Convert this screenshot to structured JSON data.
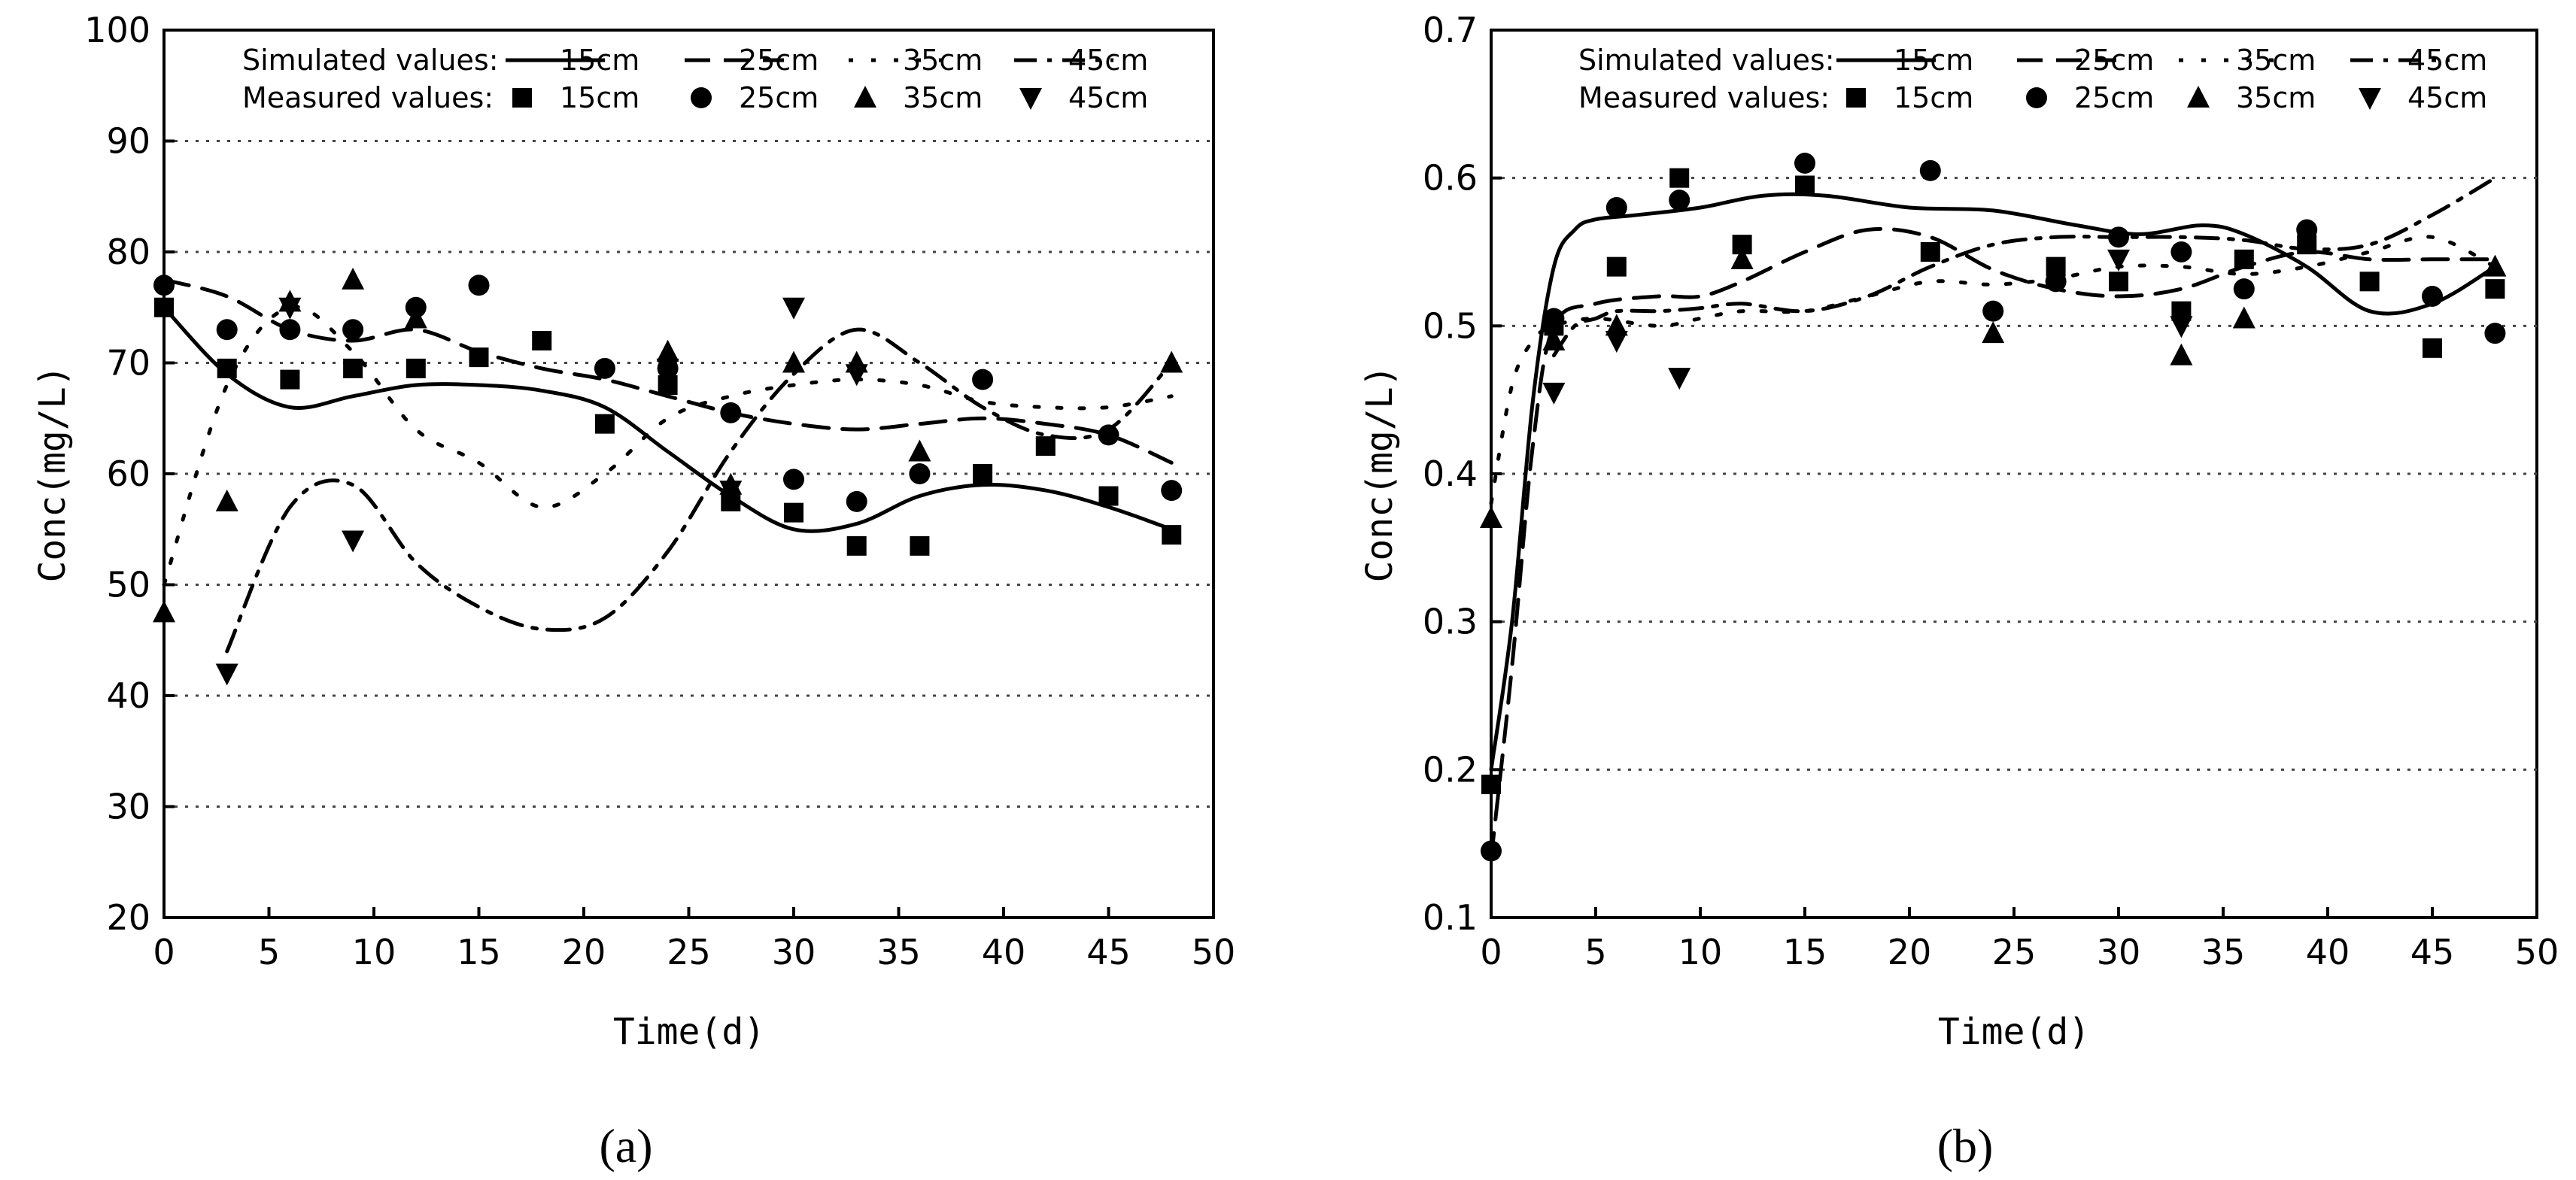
{
  "chart_data": [
    {
      "panel": "(a)",
      "type": "line+scatter",
      "xlabel": "Time(d)",
      "ylabel": "Conc(mg/L)",
      "xlim": [
        0,
        50
      ],
      "ylim": [
        20,
        100
      ],
      "xticks": [
        0,
        5,
        10,
        15,
        20,
        25,
        30,
        35,
        40,
        45,
        50
      ],
      "yticks": [
        20,
        30,
        40,
        50,
        60,
        70,
        80,
        90,
        100
      ],
      "yticks_text": [
        "20",
        "30",
        "40",
        "50",
        "60",
        "70",
        "80",
        "90",
        "100"
      ],
      "grid": "horizontal-dotted",
      "legend": {
        "simulated_label": "Simulated values:",
        "measured_label": "Measured values:",
        "depths": [
          "15cm",
          "25cm",
          "35cm",
          "45cm"
        ]
      },
      "simulated": [
        {
          "name": "15cm",
          "x": [
            0,
            3,
            6,
            9,
            12,
            15,
            18,
            21,
            24,
            27,
            30,
            33,
            36,
            39,
            42,
            45,
            48
          ],
          "y": [
            75,
            69,
            66,
            67,
            68,
            68,
            67.5,
            66,
            62,
            58,
            55,
            55.5,
            58,
            59,
            58.5,
            57,
            55
          ]
        },
        {
          "name": "25cm",
          "x": [
            0,
            3,
            6,
            9,
            12,
            15,
            18,
            21,
            24,
            27,
            30,
            33,
            36,
            39,
            42,
            45,
            48
          ],
          "y": [
            77.5,
            76,
            73,
            72,
            73,
            71,
            69.5,
            68.5,
            67,
            65.5,
            64.5,
            64,
            64.5,
            65,
            64.5,
            63.5,
            61
          ]
        },
        {
          "name": "35cm",
          "x": [
            0,
            3,
            6,
            9,
            12,
            15,
            18,
            21,
            24,
            27,
            30,
            33,
            36,
            39,
            42,
            45,
            48
          ],
          "y": [
            50,
            68,
            75,
            71,
            64,
            61,
            57,
            60,
            65,
            67,
            68,
            68.5,
            68,
            66.5,
            66,
            66,
            67
          ]
        },
        {
          "name": "45cm",
          "x": [
            3,
            6,
            9,
            12,
            15,
            18,
            21,
            24,
            27,
            30,
            33,
            36,
            39,
            42,
            45,
            48
          ],
          "y": [
            44,
            57,
            59,
            52,
            48,
            46,
            47,
            53,
            62,
            69,
            73,
            70,
            66,
            63.5,
            64,
            70
          ]
        }
      ],
      "measured": [
        {
          "name": "15cm",
          "marker": "square",
          "x": [
            0,
            3,
            6,
            9,
            12,
            15,
            18,
            21,
            24,
            27,
            30,
            33,
            36,
            39,
            42,
            45,
            48
          ],
          "y": [
            75,
            69.5,
            68.5,
            69.5,
            69.5,
            70.5,
            72,
            64.5,
            68,
            57.5,
            56.5,
            53.5,
            53.5,
            60,
            62.5,
            58,
            54.5
          ]
        },
        {
          "name": "25cm",
          "marker": "circle",
          "x": [
            0,
            3,
            6,
            9,
            12,
            15,
            21,
            24,
            27,
            30,
            33,
            36,
            39,
            45,
            48
          ],
          "y": [
            77,
            73,
            73,
            73,
            75,
            77,
            69.5,
            69.5,
            65.5,
            59.5,
            57.5,
            60,
            68.5,
            63.5,
            58.5
          ]
        },
        {
          "name": "35cm",
          "marker": "triangle-up",
          "x": [
            0,
            3,
            6,
            9,
            12,
            24,
            27,
            30,
            33,
            36,
            48
          ],
          "y": [
            47.5,
            57.5,
            75.5,
            77.5,
            74,
            71,
            59,
            70,
            70,
            62,
            70
          ]
        },
        {
          "name": "45cm",
          "marker": "triangle-down",
          "x": [
            3,
            6,
            9,
            24,
            27,
            30,
            33
          ],
          "y": [
            42,
            75,
            54,
            69.5,
            58.5,
            75,
            69
          ]
        }
      ]
    },
    {
      "panel": "(b)",
      "type": "line+scatter",
      "xlabel": "Time(d)",
      "ylabel": "Conc(mg/L)",
      "xlim": [
        0,
        50
      ],
      "ylim": [
        0.1,
        0.7
      ],
      "xticks": [
        0,
        5,
        10,
        15,
        20,
        25,
        30,
        35,
        40,
        45,
        50
      ],
      "yticks": [
        0.1,
        0.2,
        0.3,
        0.4,
        0.5,
        0.6,
        0.7
      ],
      "yticks_text": [
        "0.1",
        "0.2",
        "0.3",
        "0.4",
        "0.5",
        "0.6",
        "0.7"
      ],
      "grid": "horizontal-dotted",
      "legend": {
        "simulated_label": "Simulated values:",
        "measured_label": "Measured values:",
        "depths": [
          "15cm",
          "25cm",
          "35cm",
          "45cm"
        ]
      },
      "simulated": [
        {
          "name": "15cm",
          "x": [
            0,
            1,
            2,
            3,
            4,
            5,
            7,
            10,
            13,
            16,
            20,
            24,
            28,
            31,
            34,
            36,
            39,
            42,
            45,
            48
          ],
          "y": [
            0.2,
            0.3,
            0.45,
            0.54,
            0.565,
            0.572,
            0.575,
            0.58,
            0.588,
            0.588,
            0.58,
            0.578,
            0.568,
            0.562,
            0.568,
            0.562,
            0.54,
            0.51,
            0.515,
            0.54
          ]
        },
        {
          "name": "25cm",
          "x": [
            0,
            1,
            2,
            3,
            5,
            8,
            10,
            12,
            15,
            18,
            21,
            24,
            27,
            30,
            33,
            36,
            39,
            42,
            45,
            48
          ],
          "y": [
            0.14,
            0.27,
            0.42,
            0.5,
            0.515,
            0.52,
            0.52,
            0.53,
            0.55,
            0.565,
            0.56,
            0.538,
            0.525,
            0.52,
            0.525,
            0.54,
            0.55,
            0.545,
            0.545,
            0.545
          ]
        },
        {
          "name": "35cm",
          "x": [
            0,
            1,
            2,
            3,
            5,
            8,
            10,
            12,
            15,
            18,
            21,
            24,
            27,
            30,
            33,
            36,
            39,
            42,
            45,
            48
          ],
          "y": [
            0.38,
            0.46,
            0.49,
            0.5,
            0.505,
            0.5,
            0.505,
            0.51,
            0.51,
            0.52,
            0.53,
            0.528,
            0.532,
            0.54,
            0.54,
            0.535,
            0.54,
            0.55,
            0.56,
            0.54
          ]
        },
        {
          "name": "45cm",
          "x": [
            3,
            4,
            5,
            6,
            8,
            10,
            12,
            15,
            18,
            21,
            24,
            27,
            30,
            33,
            36,
            39,
            42,
            45,
            48
          ],
          "y": [
            0.48,
            0.5,
            0.505,
            0.51,
            0.51,
            0.512,
            0.515,
            0.51,
            0.52,
            0.54,
            0.555,
            0.56,
            0.56,
            0.56,
            0.558,
            0.552,
            0.555,
            0.575,
            0.6
          ]
        }
      ],
      "measured": [
        {
          "name": "15cm",
          "marker": "square",
          "x": [
            0,
            3,
            6,
            9,
            12,
            15,
            21,
            27,
            30,
            33,
            36,
            39,
            42,
            45,
            48
          ],
          "y": [
            0.19,
            0.5,
            0.54,
            0.6,
            0.555,
            0.595,
            0.55,
            0.54,
            0.53,
            0.51,
            0.545,
            0.555,
            0.53,
            0.485,
            0.525
          ]
        },
        {
          "name": "25cm",
          "marker": "circle",
          "x": [
            0,
            3,
            6,
            9,
            15,
            21,
            24,
            27,
            30,
            33,
            36,
            39,
            45,
            48
          ],
          "y": [
            0.145,
            0.505,
            0.58,
            0.585,
            0.61,
            0.605,
            0.51,
            0.53,
            0.56,
            0.55,
            0.525,
            0.565,
            0.52,
            0.495
          ]
        },
        {
          "name": "35cm",
          "marker": "triangle-up",
          "x": [
            0,
            3,
            6,
            12,
            24,
            33,
            36,
            48
          ],
          "y": [
            0.37,
            0.49,
            0.5,
            0.545,
            0.495,
            0.48,
            0.505,
            0.54
          ]
        },
        {
          "name": "45cm",
          "marker": "triangle-down",
          "x": [
            3,
            6,
            9,
            30,
            33
          ],
          "y": [
            0.455,
            0.49,
            0.465,
            0.545,
            0.5
          ]
        }
      ]
    }
  ]
}
